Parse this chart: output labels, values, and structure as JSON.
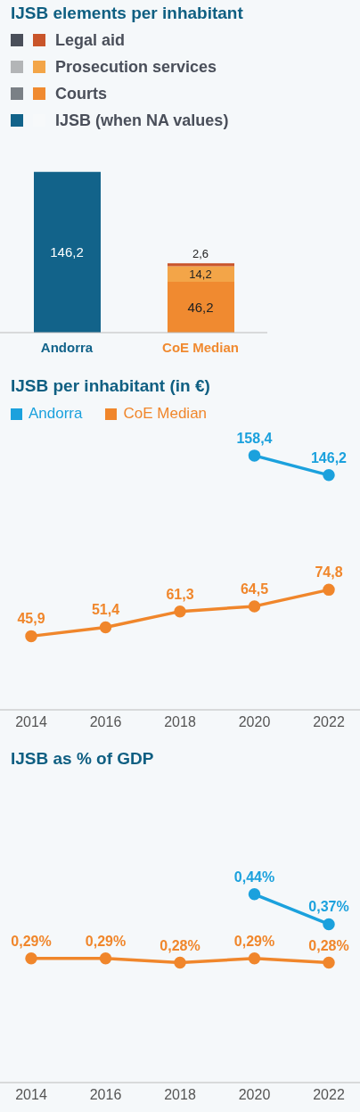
{
  "chart_data": [
    {
      "type": "bar",
      "title": "IJSB elements per inhabitant",
      "categories": [
        "Andorra",
        "CoE Median"
      ],
      "stacked": true,
      "legend": "top left",
      "series": [
        {
          "name": "IJSB (when NA values)",
          "colors": [
            "#12638a",
            "#f7f9fa"
          ],
          "values": [
            146.2,
            null
          ],
          "value_labels": [
            "146,2",
            null
          ]
        },
        {
          "name": "Courts",
          "colors": [
            "#7a8086",
            "#f08a30"
          ],
          "values": [
            null,
            46.2
          ],
          "value_labels": [
            null,
            "46,2"
          ]
        },
        {
          "name": "Prosecution services",
          "colors": [
            "#b3b5b7",
            "#f3a548"
          ],
          "values": [
            null,
            14.2
          ],
          "value_labels": [
            null,
            "14,2"
          ]
        },
        {
          "name": "Legal aid",
          "colors": [
            "#4a4f5a",
            "#c9552a"
          ],
          "values": [
            null,
            2.6
          ],
          "value_labels": [
            null,
            "2,6"
          ]
        }
      ]
    },
    {
      "type": "line",
      "title": "IJSB per inhabitant (in €)",
      "categories": [
        "2014",
        "2016",
        "2018",
        "2020",
        "2022"
      ],
      "legend": "top left",
      "marker": "circle",
      "series": [
        {
          "name": "Andorra",
          "color": "#1ba1dd",
          "values": [
            null,
            null,
            null,
            158.4,
            146.2
          ],
          "value_labels": [
            null,
            null,
            null,
            "158,4",
            "146,2"
          ]
        },
        {
          "name": "CoE Median",
          "color": "#f0862b",
          "values": [
            45.9,
            51.4,
            61.3,
            64.5,
            74.8
          ],
          "value_labels": [
            "45,9",
            "51,4",
            "61,3",
            "64,5",
            "74,8"
          ]
        }
      ]
    },
    {
      "type": "line",
      "title": "IJSB as % of GDP",
      "categories": [
        "2014",
        "2016",
        "2018",
        "2020",
        "2022"
      ],
      "marker": "circle",
      "series": [
        {
          "color": "#1ba1dd",
          "values": [
            null,
            null,
            null,
            0.44,
            0.37
          ],
          "value_labels": [
            null,
            null,
            null,
            "0,44%",
            "0,37%"
          ]
        },
        {
          "color": "#f0862b",
          "values": [
            0.29,
            0.29,
            0.28,
            0.29,
            0.28
          ],
          "value_labels": [
            "0,29%",
            "0,29%",
            "0,28%",
            "0,29%",
            "0,28%"
          ]
        }
      ]
    }
  ]
}
